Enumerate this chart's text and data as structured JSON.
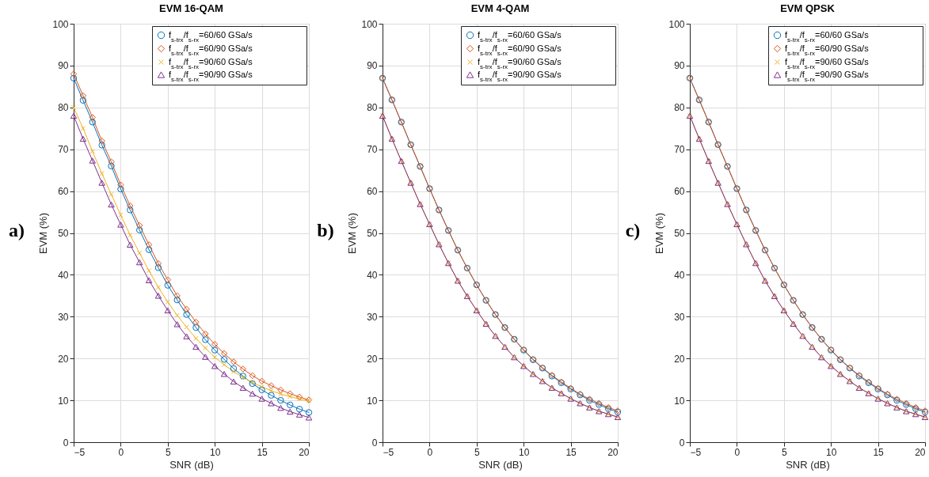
{
  "chart_data": [
    {
      "type": "line",
      "title": "EVM 16-QAM",
      "xlabel": "SNR (dB)",
      "ylabel": "EVM (%)",
      "annotations": [
        "a)"
      ],
      "x": [
        -5,
        -4,
        -3,
        -2,
        -1,
        0,
        1,
        2,
        3,
        4,
        5,
        6,
        7,
        8,
        9,
        10,
        11,
        12,
        13,
        14,
        15,
        16,
        17,
        18,
        19,
        20
      ],
      "xlim": [
        -5,
        20
      ],
      "xticks": [
        -5,
        0,
        5,
        10,
        15,
        20
      ],
      "ylim": [
        0,
        100
      ],
      "yticks": [
        0,
        10,
        20,
        30,
        40,
        50,
        60,
        70,
        80,
        90,
        100
      ],
      "grid": true,
      "legend": "top right",
      "series": [
        {
          "name": "f$_{s-trx}$/f$_{s-rx}$=60/60 GSa/s",
          "color": "#0072bd",
          "marker": "circle",
          "values": [
            87,
            81.7,
            76.5,
            71,
            66,
            60.5,
            55.5,
            50.7,
            46,
            41.7,
            37.5,
            34,
            30.5,
            27.4,
            24.5,
            22,
            19.8,
            17.6,
            15.8,
            14,
            12.5,
            11.2,
            10,
            8.9,
            7.9,
            7.1
          ]
        },
        {
          "name": "f$_{s-trx}$/f$_{s-rx}$=60/90 GSa/s",
          "color": "#d95319",
          "marker": "diamond",
          "values": [
            88,
            82.8,
            77.6,
            72,
            67,
            61.5,
            56.5,
            51.8,
            47.2,
            42.7,
            38.8,
            35,
            31.8,
            28.7,
            25.9,
            23.4,
            21.2,
            19.2,
            17.5,
            15.9,
            14.6,
            13.5,
            12.5,
            11.6,
            10.8,
            10.1
          ]
        },
        {
          "name": "f$_{s-trx}$/f$_{s-rx}$=90/60 GSa/s",
          "color": "#edb120",
          "marker": "cross",
          "values": [
            80,
            75,
            69.5,
            64.2,
            59.2,
            54.3,
            49.5,
            45.2,
            41,
            37,
            33.5,
            30.3,
            27.5,
            24.8,
            22.5,
            20.3,
            18.5,
            16.9,
            15.5,
            14.3,
            13.2,
            12.3,
            11.5,
            10.9,
            10.3,
            9.9
          ]
        },
        {
          "name": "f$_{s-trx}$/f$_{s-rx}$=90/90 GSa/s",
          "color": "#7e2f8e",
          "marker": "triangle",
          "values": [
            78,
            72.5,
            67.3,
            62,
            56.8,
            52,
            47.2,
            43,
            38.7,
            35,
            31.5,
            28.2,
            25.3,
            22.8,
            20.4,
            18.2,
            16.3,
            14.5,
            13,
            11.6,
            10.4,
            9.3,
            8.2,
            7.3,
            6.6,
            5.9
          ]
        }
      ]
    },
    {
      "type": "line",
      "title": "EVM 4-QAM",
      "xlabel": "SNR (dB)",
      "ylabel": "EVM (%)",
      "annotations": [
        "b)"
      ],
      "x": [
        -5,
        -4,
        -3,
        -2,
        -1,
        0,
        1,
        2,
        3,
        4,
        5,
        6,
        7,
        8,
        9,
        10,
        11,
        12,
        13,
        14,
        15,
        16,
        17,
        18,
        19,
        20
      ],
      "xlim": [
        -5,
        20
      ],
      "xticks": [
        -5,
        0,
        5,
        10,
        15,
        20
      ],
      "ylim": [
        0,
        100
      ],
      "yticks": [
        0,
        10,
        20,
        30,
        40,
        50,
        60,
        70,
        80,
        90,
        100
      ],
      "grid": true,
      "legend": "top right",
      "series": [
        {
          "name": "f$_{s-trx}$/f$_{s-rx}$=60/60 GSa/s",
          "color": "#0072bd",
          "marker": "circle",
          "values": [
            87,
            81.8,
            76.5,
            71.1,
            65.9,
            60.6,
            55.5,
            50.6,
            45.9,
            41.6,
            37.6,
            33.9,
            30.5,
            27.4,
            24.6,
            22,
            19.7,
            17.7,
            15.8,
            14.2,
            12.7,
            11.3,
            10,
            9,
            8,
            7.2
          ]
        },
        {
          "name": "f$_{s-trx}$/f$_{s-rx}$=60/90 GSa/s",
          "color": "#d95319",
          "marker": "diamond",
          "values": [
            87,
            81.8,
            76.5,
            71.1,
            65.9,
            60.6,
            55.5,
            50.6,
            45.9,
            41.6,
            37.6,
            33.9,
            30.5,
            27.4,
            24.6,
            22.1,
            19.8,
            17.8,
            16,
            14.4,
            12.9,
            11.5,
            10.3,
            9.3,
            8.3,
            7.5
          ]
        },
        {
          "name": "f$_{s-trx}$/f$_{s-rx}$=90/60 GSa/s",
          "color": "#edb120",
          "marker": "cross",
          "values": [
            78,
            72.5,
            67.2,
            62,
            56.9,
            52.1,
            47.3,
            42.8,
            38.6,
            34.9,
            31.5,
            28.3,
            25.4,
            22.8,
            20.3,
            18.2,
            16.3,
            14.6,
            13,
            11.7,
            10.4,
            9.3,
            8.3,
            7.4,
            6.7,
            6
          ]
        },
        {
          "name": "f$_{s-trx}$/f$_{s-rx}$=90/90 GSa/s",
          "color": "#7e2f8e",
          "marker": "triangle",
          "values": [
            78,
            72.5,
            67.2,
            62,
            56.9,
            52.1,
            47.3,
            42.8,
            38.6,
            34.9,
            31.5,
            28.3,
            25.4,
            22.8,
            20.3,
            18.2,
            16.3,
            14.6,
            13,
            11.7,
            10.4,
            9.3,
            8.3,
            7.4,
            6.7,
            6
          ]
        }
      ]
    },
    {
      "type": "line",
      "title": "EVM QPSK",
      "xlabel": "SNR (dB)",
      "ylabel": "EVM (%)",
      "annotations": [
        "c)"
      ],
      "x": [
        -5,
        -4,
        -3,
        -2,
        -1,
        0,
        1,
        2,
        3,
        4,
        5,
        6,
        7,
        8,
        9,
        10,
        11,
        12,
        13,
        14,
        15,
        16,
        17,
        18,
        19,
        20
      ],
      "xlim": [
        -5,
        20
      ],
      "xticks": [
        -5,
        0,
        5,
        10,
        15,
        20
      ],
      "ylim": [
        0,
        100
      ],
      "yticks": [
        0,
        10,
        20,
        30,
        40,
        50,
        60,
        70,
        80,
        90,
        100
      ],
      "grid": true,
      "legend": "top right",
      "series": [
        {
          "name": "f$_{s-trx}$/f$_{s-rx}$=60/60 GSa/s",
          "color": "#0072bd",
          "marker": "circle",
          "values": [
            87,
            81.8,
            76.5,
            71.1,
            65.9,
            60.6,
            55.5,
            50.6,
            45.9,
            41.6,
            37.6,
            33.9,
            30.5,
            27.4,
            24.6,
            22,
            19.7,
            17.7,
            15.8,
            14.2,
            12.7,
            11.3,
            10,
            9,
            8,
            7.2
          ]
        },
        {
          "name": "f$_{s-trx}$/f$_{s-rx}$=60/90 GSa/s",
          "color": "#d95319",
          "marker": "diamond",
          "values": [
            87,
            81.8,
            76.5,
            71.1,
            65.9,
            60.6,
            55.5,
            50.6,
            45.9,
            41.6,
            37.6,
            33.9,
            30.5,
            27.4,
            24.6,
            22.1,
            19.8,
            17.8,
            16,
            14.4,
            12.9,
            11.5,
            10.3,
            9.3,
            8.3,
            7.5
          ]
        },
        {
          "name": "f$_{s-trx}$/f$_{s-rx}$=90/60 GSa/s",
          "color": "#edb120",
          "marker": "cross",
          "values": [
            78,
            72.5,
            67.2,
            62,
            56.9,
            52.1,
            47.3,
            42.8,
            38.6,
            34.9,
            31.5,
            28.3,
            25.4,
            22.8,
            20.3,
            18.2,
            16.3,
            14.6,
            13,
            11.7,
            10.4,
            9.3,
            8.3,
            7.4,
            6.7,
            6
          ]
        },
        {
          "name": "f$_{s-trx}$/f$_{s-rx}$=90/90 GSa/s",
          "color": "#7e2f8e",
          "marker": "triangle",
          "values": [
            78,
            72.5,
            67.2,
            62,
            56.9,
            52.1,
            47.3,
            42.8,
            38.6,
            34.9,
            31.5,
            28.3,
            25.4,
            22.8,
            20.3,
            18.2,
            16.3,
            14.6,
            13,
            11.7,
            10.4,
            9.3,
            8.3,
            7.4,
            6.7,
            6
          ]
        }
      ]
    }
  ]
}
